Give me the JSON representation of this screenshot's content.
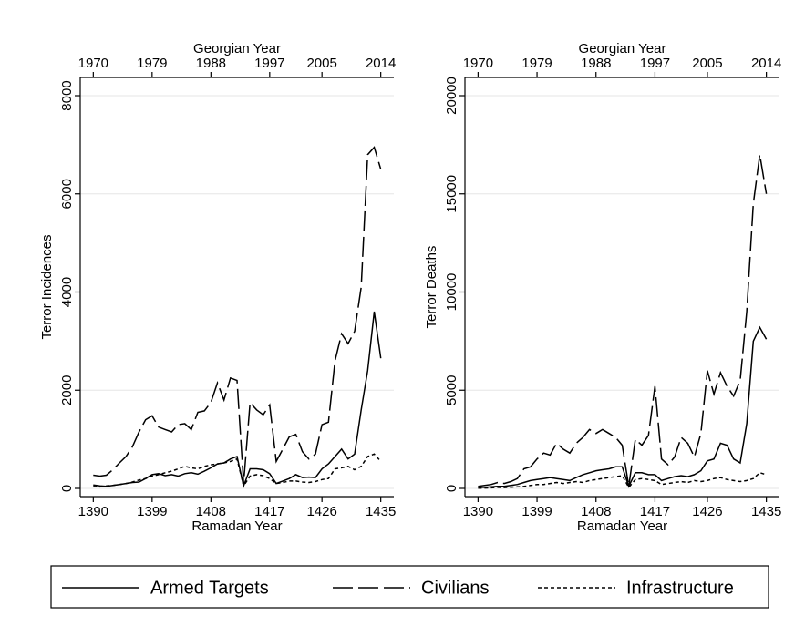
{
  "chart_data": [
    {
      "type": "line",
      "x_label": "Ramadan Year",
      "x2_label": "Georgian Year",
      "y_label": "Terror Incidences",
      "x": [
        1970,
        1971,
        1972,
        1973,
        1974,
        1975,
        1976,
        1977,
        1978,
        1979,
        1980,
        1981,
        1982,
        1983,
        1984,
        1985,
        1986,
        1987,
        1988,
        1989,
        1990,
        1991,
        1992,
        1993,
        1994,
        1995,
        1996,
        1997,
        1998,
        1999,
        2000,
        2001,
        2002,
        2003,
        2004,
        2005,
        2006,
        2007,
        2008,
        2009,
        2010,
        2011,
        2012,
        2013,
        2014
      ],
      "xlim": [
        1968,
        2016
      ],
      "xticks": [
        {
          "value": 1970,
          "label": "1390"
        },
        {
          "value": 1979,
          "label": "1399"
        },
        {
          "value": 1988,
          "label": "1408"
        },
        {
          "value": 1997,
          "label": "1417"
        },
        {
          "value": 2005,
          "label": "1426"
        },
        {
          "value": 2014,
          "label": "1435"
        }
      ],
      "x2ticks": [
        1970,
        1979,
        1988,
        1997,
        2005,
        2014
      ],
      "ylim": [
        0,
        8000
      ],
      "yticks": [
        0,
        2000,
        4000,
        6000,
        8000
      ],
      "grid": true,
      "series": [
        {
          "name": "Armed Targets",
          "color": "#000000",
          "dash": "solid",
          "values": [
            70,
            50,
            40,
            60,
            80,
            100,
            120,
            130,
            200,
            280,
            300,
            260,
            280,
            250,
            300,
            320,
            290,
            350,
            420,
            500,
            520,
            600,
            650,
            50,
            400,
            400,
            380,
            300,
            100,
            150,
            200,
            280,
            220,
            230,
            220,
            400,
            500,
            650,
            800,
            600,
            700,
            1600,
            2400,
            3600,
            2650
          ]
        },
        {
          "name": "Civilians",
          "color": "#000000",
          "dash": "long",
          "values": [
            270,
            250,
            270,
            380,
            520,
            650,
            850,
            1150,
            1400,
            1480,
            1250,
            1200,
            1150,
            1300,
            1320,
            1200,
            1550,
            1580,
            1750,
            2150,
            1800,
            2250,
            2200,
            100,
            1750,
            1600,
            1500,
            1700,
            550,
            800,
            1050,
            1100,
            750,
            600,
            700,
            1300,
            1350,
            2600,
            3150,
            2950,
            3200,
            4100,
            6800,
            6950,
            6500
          ]
        },
        {
          "name": "Infrastructure",
          "color": "#000000",
          "dash": "short",
          "values": [
            40,
            30,
            50,
            60,
            80,
            100,
            130,
            170,
            200,
            250,
            280,
            320,
            350,
            400,
            450,
            420,
            400,
            450,
            480,
            500,
            520,
            550,
            600,
            50,
            250,
            280,
            260,
            200,
            100,
            120,
            150,
            150,
            130,
            120,
            140,
            180,
            200,
            400,
            420,
            450,
            380,
            450,
            650,
            700,
            550
          ]
        }
      ]
    },
    {
      "type": "line",
      "x_label": "Ramadan Year",
      "x2_label": "Georgian Year",
      "y_label": "Terror Deaths",
      "x": [
        1970,
        1971,
        1972,
        1973,
        1974,
        1975,
        1976,
        1977,
        1978,
        1979,
        1980,
        1981,
        1982,
        1983,
        1984,
        1985,
        1986,
        1987,
        1988,
        1989,
        1990,
        1991,
        1992,
        1993,
        1994,
        1995,
        1996,
        1997,
        1998,
        1999,
        2000,
        2001,
        2002,
        2003,
        2004,
        2005,
        2006,
        2007,
        2008,
        2009,
        2010,
        2011,
        2012,
        2013,
        2014
      ],
      "xlim": [
        1968,
        2016
      ],
      "xticks": [
        {
          "value": 1970,
          "label": "1390"
        },
        {
          "value": 1979,
          "label": "1399"
        },
        {
          "value": 1988,
          "label": "1408"
        },
        {
          "value": 1997,
          "label": "1417"
        },
        {
          "value": 2005,
          "label": "1426"
        },
        {
          "value": 2014,
          "label": "1435"
        }
      ],
      "x2ticks": [
        1970,
        1979,
        1988,
        1997,
        2005,
        2014
      ],
      "ylim": [
        0,
        20000
      ],
      "yticks": [
        0,
        5000,
        10000,
        15000,
        20000
      ],
      "grid": true,
      "series": [
        {
          "color": "#000000",
          "dash": "solid",
          "values": [
            50,
            50,
            80,
            100,
            100,
            150,
            200,
            300,
            400,
            450,
            500,
            550,
            500,
            450,
            400,
            550,
            700,
            800,
            900,
            950,
            1000,
            1100,
            1100,
            100,
            800,
            800,
            700,
            700,
            400,
            500,
            600,
            650,
            600,
            700,
            900,
            1400,
            1500,
            2300,
            2200,
            1500,
            1300,
            3300,
            7500,
            8200,
            7600
          ]
        },
        {
          "color": "#000000",
          "dash": "long",
          "values": [
            100,
            150,
            200,
            300,
            250,
            350,
            500,
            1000,
            1100,
            1500,
            1800,
            1700,
            2300,
            2000,
            1800,
            2300,
            2600,
            3000,
            2800,
            3000,
            2800,
            2600,
            2200,
            100,
            2500,
            2200,
            2700,
            5200,
            1500,
            1200,
            1600,
            2600,
            2300,
            1600,
            2800,
            6000,
            4800,
            5900,
            5200,
            4700,
            5500,
            9000,
            14500,
            17000,
            15000
          ]
        },
        {
          "color": "#000000",
          "dash": "short",
          "values": [
            10,
            20,
            30,
            50,
            40,
            60,
            80,
            100,
            150,
            200,
            200,
            250,
            300,
            250,
            300,
            350,
            300,
            400,
            450,
            500,
            550,
            600,
            650,
            50,
            450,
            500,
            450,
            400,
            200,
            250,
            300,
            350,
            300,
            400,
            350,
            400,
            500,
            550,
            450,
            400,
            350,
            400,
            500,
            800,
            700
          ]
        }
      ]
    }
  ]
}
